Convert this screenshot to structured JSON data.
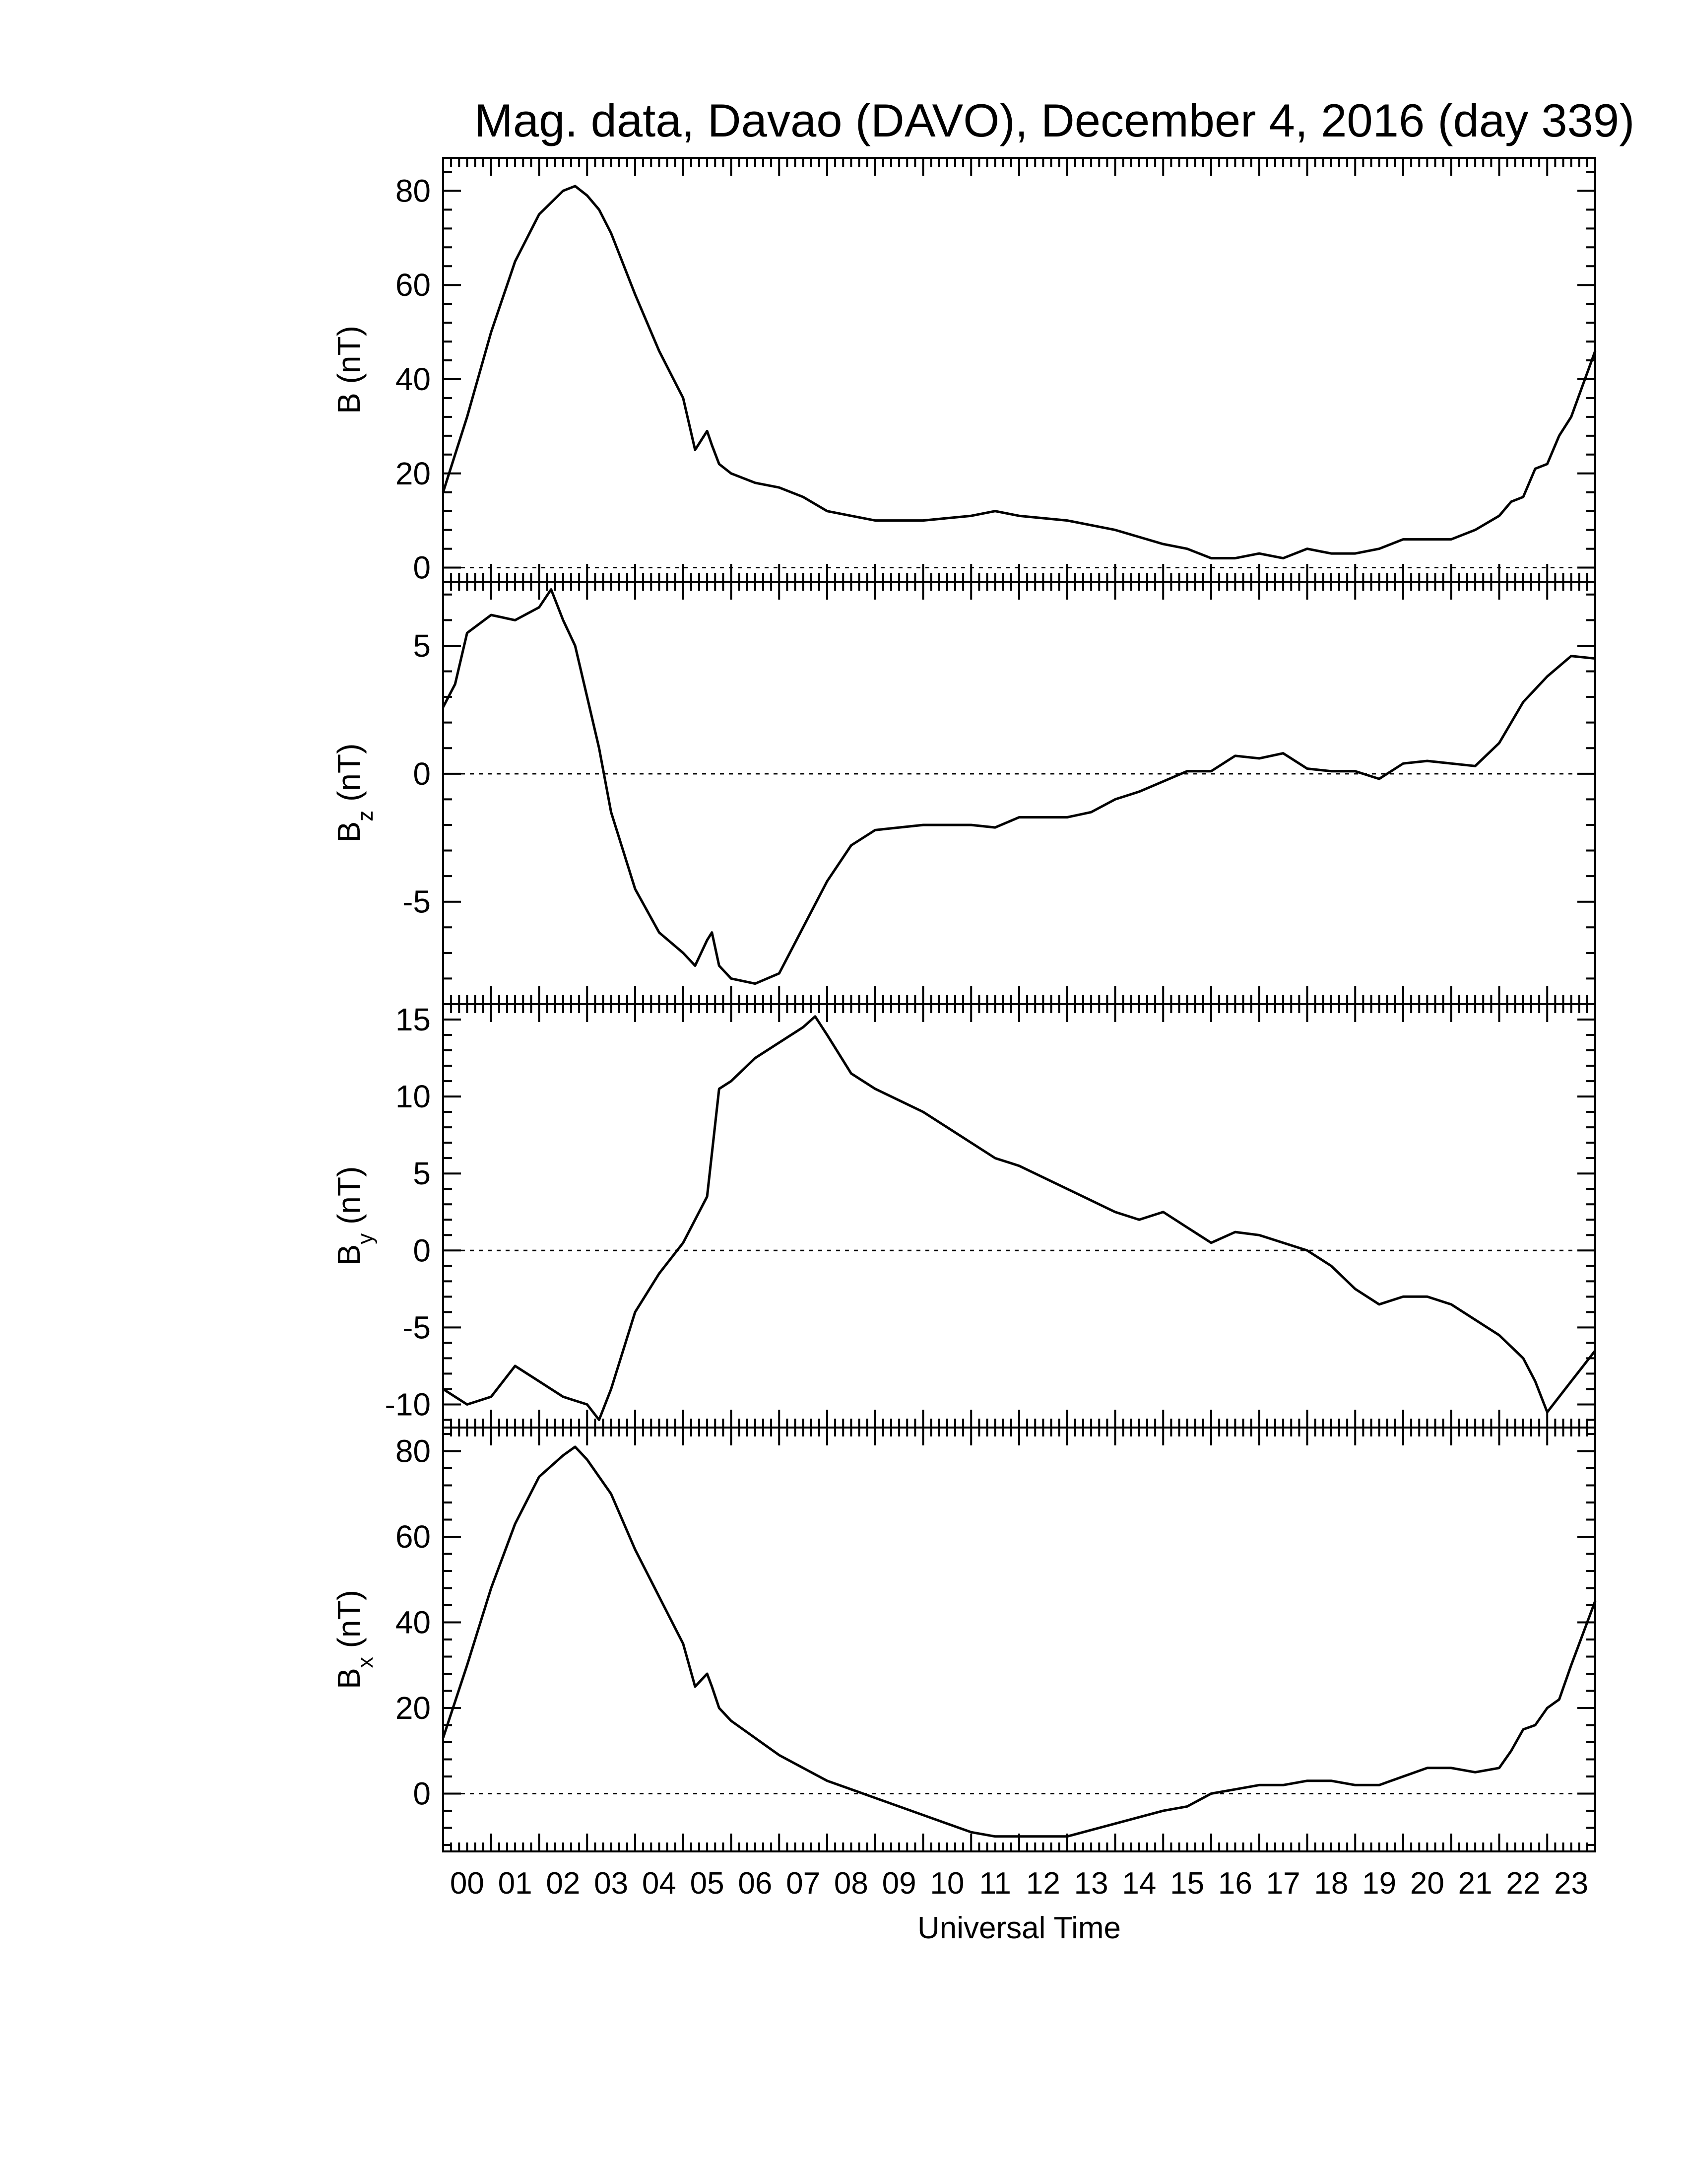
{
  "chart_data": {
    "type": "line",
    "title": "Mag. data, Davao (DAVO), December 4, 2016 (day 339)",
    "xlabel": "Universal Time",
    "x_unit": "hours UT",
    "xlim": [
      0,
      24
    ],
    "x_tick_labels": [
      "00",
      "01",
      "02",
      "03",
      "04",
      "05",
      "06",
      "07",
      "08",
      "09",
      "10",
      "11",
      "12",
      "13",
      "14",
      "15",
      "16",
      "17",
      "18",
      "19",
      "20",
      "21",
      "22",
      "23"
    ],
    "grid": false,
    "legend": "none",
    "panels": [
      {
        "name": "B",
        "ylabel": {
          "main": "B",
          "sub": "",
          "unit": " (nT)"
        },
        "ylim": [
          -3,
          87
        ],
        "yticks": [
          0,
          20,
          40,
          60,
          80
        ],
        "zero_line": true,
        "series": {
          "x": [
            0,
            0.5,
            1,
            1.5,
            2,
            2.5,
            2.75,
            3,
            3.25,
            3.5,
            4,
            4.5,
            5,
            5.25,
            5.5,
            5.6,
            5.75,
            6,
            6.5,
            7,
            7.5,
            8,
            8.5,
            9,
            10,
            11,
            11.5,
            12,
            13,
            14,
            15,
            15.5,
            16,
            16.5,
            17,
            17.5,
            18,
            18.5,
            19,
            19.5,
            20,
            20.5,
            21,
            21.5,
            22,
            22.25,
            22.5,
            22.75,
            23,
            23.25,
            23.5,
            24
          ],
          "y": [
            16,
            32,
            50,
            65,
            75,
            80,
            81,
            79,
            76,
            71,
            58,
            46,
            36,
            25,
            29,
            26,
            22,
            20,
            18,
            17,
            15,
            12,
            11,
            10,
            10,
            11,
            12,
            11,
            10,
            8,
            5,
            4,
            2,
            2,
            3,
            2,
            4,
            3,
            3,
            4,
            6,
            6,
            6,
            8,
            11,
            14,
            15,
            21,
            22,
            28,
            32,
            46
          ]
        }
      },
      {
        "name": "Bz",
        "ylabel": {
          "main": "B",
          "sub": "z",
          "unit": " (nT)"
        },
        "ylim": [
          -9,
          7.5
        ],
        "yticks": [
          -5,
          0,
          5
        ],
        "zero_line": true,
        "series": {
          "x": [
            0,
            0.25,
            0.5,
            1,
            1.5,
            2,
            2.25,
            2.5,
            2.75,
            3,
            3.25,
            3.5,
            4,
            4.5,
            5,
            5.25,
            5.5,
            5.6,
            5.75,
            6,
            6.5,
            7,
            7.5,
            8,
            8.5,
            9,
            10,
            11,
            11.5,
            12,
            13,
            13.5,
            14,
            14.5,
            15,
            15.5,
            16,
            16.5,
            17,
            17.5,
            18,
            18.5,
            19,
            19.5,
            20,
            20.5,
            21,
            21.5,
            22,
            22.5,
            23,
            23.5,
            24
          ],
          "y": [
            2.6,
            3.5,
            5.5,
            6.2,
            6,
            6.5,
            7.2,
            6,
            5,
            3,
            1,
            -1.5,
            -4.5,
            -6.2,
            -7,
            -7.5,
            -6.5,
            -6.2,
            -7.5,
            -8,
            -8.2,
            -7.8,
            -6,
            -4.2,
            -2.8,
            -2.2,
            -2,
            -2,
            -2.1,
            -1.7,
            -1.7,
            -1.5,
            -1,
            -0.7,
            -0.3,
            0.1,
            0.1,
            0.7,
            0.6,
            0.8,
            0.2,
            0.1,
            0.1,
            -0.2,
            0.4,
            0.5,
            0.4,
            0.3,
            1.2,
            2.8,
            3.8,
            4.6,
            4.5
          ]
        }
      },
      {
        "name": "By",
        "ylabel": {
          "main": "B",
          "sub": "y",
          "unit": " (nT)"
        },
        "ylim": [
          -11.5,
          16
        ],
        "yticks": [
          -10,
          -5,
          0,
          5,
          10,
          15
        ],
        "zero_line": true,
        "series": {
          "x": [
            0,
            0.5,
            1,
            1.5,
            2,
            2.5,
            3,
            3.25,
            3.5,
            4,
            4.5,
            5,
            5.5,
            5.75,
            6,
            6.5,
            7,
            7.5,
            7.75,
            8,
            8.5,
            9,
            10,
            11,
            11.5,
            12,
            13,
            14,
            14.5,
            15,
            15.5,
            16,
            16.5,
            17,
            17.5,
            18,
            18.5,
            19,
            19.5,
            20,
            20.5,
            21,
            21.5,
            22,
            22.5,
            22.75,
            23,
            23.5,
            24
          ],
          "y": [
            -9,
            -10,
            -9.5,
            -7.5,
            -8.5,
            -9.5,
            -10,
            -11,
            -9,
            -4,
            -1.5,
            0.5,
            3.5,
            10.5,
            11,
            12.5,
            13.5,
            14.5,
            15.2,
            14,
            11.5,
            10.5,
            9,
            7,
            6,
            5.5,
            4,
            2.5,
            2,
            2.5,
            1.5,
            0.5,
            1.2,
            1,
            0.5,
            0,
            -1,
            -2.5,
            -3.5,
            -3,
            -3,
            -3.5,
            -4.5,
            -5.5,
            -7,
            -8.5,
            -10.5,
            -8.5,
            -6.5
          ]
        }
      },
      {
        "name": "Bx",
        "ylabel": {
          "main": "B",
          "sub": "x",
          "unit": " (nT)"
        },
        "ylim": [
          -13.5,
          85.5
        ],
        "yticks": [
          0,
          20,
          40,
          60,
          80
        ],
        "zero_line": true,
        "series": {
          "x": [
            0,
            0.5,
            1,
            1.5,
            2,
            2.5,
            2.75,
            3,
            3.5,
            4,
            4.5,
            5,
            5.25,
            5.5,
            5.6,
            5.75,
            6,
            6.5,
            7,
            7.5,
            8,
            8.5,
            9,
            10,
            11,
            11.5,
            12,
            13,
            14,
            15,
            15.5,
            16,
            16.5,
            17,
            17.5,
            18,
            18.5,
            19,
            19.5,
            20,
            20.5,
            21,
            21.5,
            22,
            22.25,
            22.5,
            22.75,
            23,
            23.25,
            23.5,
            24
          ],
          "y": [
            13,
            30,
            48,
            63,
            74,
            79,
            81,
            78,
            70,
            57,
            46,
            35,
            25,
            28,
            25,
            20,
            17,
            13,
            9,
            6,
            3,
            1,
            -1,
            -5,
            -9,
            -10,
            -10,
            -10,
            -7,
            -4,
            -3,
            0,
            1,
            2,
            2,
            3,
            3,
            2,
            2,
            4,
            6,
            6,
            5,
            6,
            10,
            15,
            16,
            20,
            22,
            30,
            45
          ]
        }
      }
    ]
  }
}
